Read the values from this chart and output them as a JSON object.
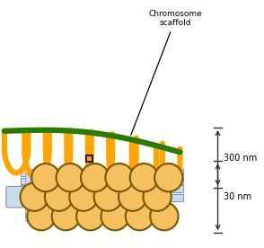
{
  "bg_color": "#ffffff",
  "orange_color": "#FFA500",
  "orange_lw": 4.5,
  "green_color": "#2A7A00",
  "green_lw": 4.5,
  "scaffold_label": "Chromosome\nscaffold",
  "label_300": "300 nm",
  "label_30": "30 nm",
  "nucleosome_fill": "#F5C060",
  "nucleosome_edge": "#7A5800",
  "nucleosome_edge_lw": 1.5,
  "linker_fill": "#C8DCF0",
  "linker_edge": "#8090B0",
  "arrow_color": "#333333",
  "figw": 2.94,
  "figh": 2.76,
  "dpi": 100
}
